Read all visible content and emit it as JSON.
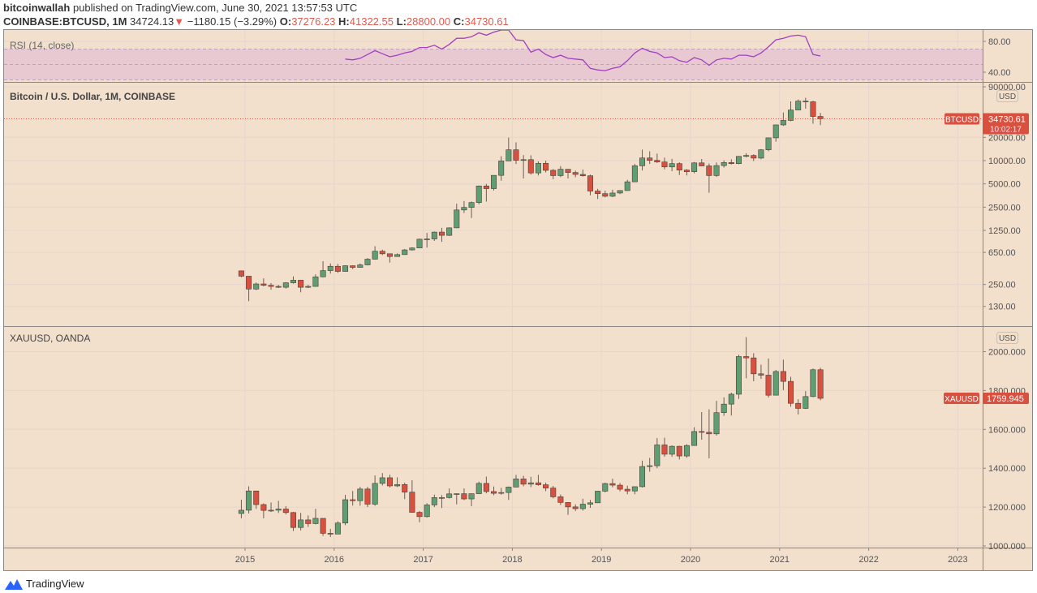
{
  "header": {
    "author": "bitcoinwallah",
    "published_text": "published on TradingView.com, June 30, 2021 13:57:53 UTC",
    "symbol": "COINBASE:BTCUSD, 1M",
    "last": "34724.13",
    "change": "−1180.15 (−3.29%)",
    "o_label": "O:",
    "o": "37276.23",
    "h_label": "H:",
    "h": "41322.55",
    "l_label": "L:",
    "l": "28800.00",
    "c_label": "C:",
    "c": "34730.61"
  },
  "colors": {
    "background": "#f2dfcc",
    "up": "#5f9e73",
    "down": "#d9503f",
    "rsi_line": "#a040c0",
    "rsi_band": "#e6c6d2"
  },
  "rsi_pane": {
    "title": "RSI (14, close)",
    "ticks": [
      "80.00",
      "40.00"
    ],
    "band": [
      30,
      70
    ],
    "start_month": "2016-02",
    "values": [
      57,
      56,
      58,
      63,
      68,
      64,
      60,
      62,
      65,
      67,
      72,
      72,
      75,
      70,
      76,
      84,
      84,
      86,
      91,
      88,
      92,
      96,
      97,
      82,
      81,
      66,
      70,
      63,
      59,
      62,
      58,
      57,
      56,
      45,
      43,
      42,
      45,
      47,
      55,
      65,
      71,
      67,
      65,
      59,
      60,
      55,
      53,
      59,
      56,
      49,
      56,
      58,
      57,
      62,
      62,
      60,
      65,
      73,
      82,
      84,
      87,
      88,
      86,
      63,
      61
    ]
  },
  "btc_pane": {
    "title": "Bitcoin / U.S. Dollar, 1M, COINBASE",
    "currency": "USD",
    "scale": "log",
    "ticks": [
      "90000.00",
      "20000.00",
      "10000.00",
      "5000.00",
      "2500.00",
      "1250.00",
      "650.00",
      "250.00",
      "130.00"
    ],
    "price_label": {
      "symbol": "BTCUSD",
      "price": "34730.61",
      "countdown": "10:02:17"
    },
    "start_month": "2014-12",
    "ohlc": [
      [
        375,
        380,
        310,
        320
      ],
      [
        320,
        320,
        152,
        218
      ],
      [
        218,
        265,
        212,
        254
      ],
      [
        254,
        300,
        236,
        244
      ],
      [
        244,
        261,
        214,
        236
      ],
      [
        236,
        247,
        225,
        230
      ],
      [
        230,
        268,
        221,
        263
      ],
      [
        263,
        318,
        256,
        284
      ],
      [
        284,
        285,
        198,
        230
      ],
      [
        230,
        247,
        225,
        236
      ],
      [
        236,
        338,
        236,
        314
      ],
      [
        314,
        500,
        310,
        378
      ],
      [
        378,
        468,
        346,
        430
      ],
      [
        430,
        462,
        353,
        369
      ],
      [
        369,
        443,
        367,
        437
      ],
      [
        437,
        439,
        394,
        416
      ],
      [
        416,
        467,
        412,
        448
      ],
      [
        448,
        550,
        441,
        531
      ],
      [
        531,
        781,
        526,
        673
      ],
      [
        673,
        705,
        600,
        624
      ],
      [
        624,
        624,
        480,
        575
      ],
      [
        575,
        630,
        570,
        609
      ],
      [
        609,
        720,
        605,
        700
      ],
      [
        700,
        755,
        685,
        742
      ],
      [
        742,
        979,
        740,
        963
      ],
      [
        963,
        1160,
        750,
        970
      ],
      [
        970,
        1210,
        915,
        1190
      ],
      [
        1190,
        1350,
        890,
        1080
      ],
      [
        1080,
        1370,
        1060,
        1350
      ],
      [
        1350,
        2770,
        1340,
        2300
      ],
      [
        2300,
        3000,
        2100,
        2480
      ],
      [
        2480,
        2960,
        1810,
        2870
      ],
      [
        2870,
        4760,
        2720,
        4700
      ],
      [
        4700,
        5000,
        2950,
        4340
      ],
      [
        4340,
        6470,
        4110,
        6450
      ],
      [
        6450,
        11400,
        5500,
        9900
      ],
      [
        9900,
        19890,
        9900,
        13800
      ],
      [
        13800,
        17250,
        9050,
        10100
      ],
      [
        10100,
        11790,
        5880,
        10300
      ],
      [
        10300,
        11700,
        6600,
        6930
      ],
      [
        6930,
        9770,
        6430,
        9240
      ],
      [
        9240,
        10000,
        7050,
        7490
      ],
      [
        7490,
        7780,
        5750,
        6400
      ],
      [
        6400,
        8500,
        6100,
        7730
      ],
      [
        7730,
        7760,
        5880,
        7020
      ],
      [
        7020,
        7420,
        6100,
        6630
      ],
      [
        6630,
        7680,
        6200,
        6370
      ],
      [
        6370,
        6590,
        3560,
        4040
      ],
      [
        4040,
        4310,
        3190,
        3740
      ],
      [
        3740,
        4090,
        3350,
        3460
      ],
      [
        3460,
        4200,
        3370,
        3810
      ],
      [
        3810,
        4150,
        3690,
        4100
      ],
      [
        4100,
        5640,
        4070,
        5320
      ],
      [
        5320,
        9080,
        5320,
        8570
      ],
      [
        8570,
        13880,
        7450,
        10820
      ],
      [
        10820,
        13200,
        9050,
        10080
      ],
      [
        10080,
        12330,
        9320,
        9600
      ],
      [
        9600,
        10950,
        7700,
        8290
      ],
      [
        8290,
        10540,
        7300,
        9150
      ],
      [
        9150,
        9510,
        6520,
        7540
      ],
      [
        7540,
        7750,
        6430,
        7190
      ],
      [
        7190,
        9580,
        6850,
        9350
      ],
      [
        9350,
        10500,
        8450,
        8540
      ],
      [
        8540,
        9200,
        3850,
        6410
      ],
      [
        6410,
        9460,
        6150,
        8630
      ],
      [
        8630,
        10070,
        8130,
        9450
      ],
      [
        9450,
        10390,
        8900,
        9140
      ],
      [
        9140,
        11450,
        8980,
        11350
      ],
      [
        11350,
        12470,
        10980,
        11660
      ],
      [
        11660,
        12090,
        9880,
        10780
      ],
      [
        10780,
        14100,
        10430,
        13800
      ],
      [
        13800,
        19900,
        13200,
        19700
      ],
      [
        19700,
        29300,
        17570,
        28990
      ],
      [
        28990,
        41950,
        28130,
        33110
      ],
      [
        33110,
        58350,
        32300,
        45160
      ],
      [
        45160,
        61790,
        44960,
        58800
      ],
      [
        58800,
        64900,
        47050,
        57720
      ],
      [
        57720,
        59500,
        30000,
        37280
      ],
      [
        37276.23,
        41322.55,
        28800,
        34730.61
      ]
    ]
  },
  "gold_pane": {
    "title": "XAUUSD, OANDA",
    "currency": "USD",
    "ticks": [
      "2000.000",
      "1800.000",
      "1600.000",
      "1400.000",
      "1200.000",
      "1000.000"
    ],
    "price_label": {
      "symbol": "XAUUSD",
      "price": "1759.945"
    },
    "start_month": "2014-12",
    "ohlc": [
      [
        1167,
        1238,
        1142,
        1184
      ],
      [
        1184,
        1307,
        1167,
        1283
      ],
      [
        1283,
        1284,
        1191,
        1213
      ],
      [
        1213,
        1219,
        1142,
        1183
      ],
      [
        1183,
        1224,
        1175,
        1184
      ],
      [
        1184,
        1232,
        1170,
        1190
      ],
      [
        1190,
        1205,
        1162,
        1172
      ],
      [
        1172,
        1175,
        1077,
        1095
      ],
      [
        1095,
        1170,
        1080,
        1134
      ],
      [
        1134,
        1157,
        1098,
        1115
      ],
      [
        1115,
        1191,
        1111,
        1142
      ],
      [
        1142,
        1142,
        1052,
        1065
      ],
      [
        1065,
        1088,
        1046,
        1061
      ],
      [
        1061,
        1127,
        1061,
        1118
      ],
      [
        1118,
        1263,
        1107,
        1238
      ],
      [
        1238,
        1283,
        1208,
        1233
      ],
      [
        1233,
        1304,
        1207,
        1293
      ],
      [
        1293,
        1304,
        1200,
        1215
      ],
      [
        1215,
        1363,
        1207,
        1322
      ],
      [
        1322,
        1375,
        1311,
        1351
      ],
      [
        1351,
        1367,
        1301,
        1309
      ],
      [
        1309,
        1353,
        1303,
        1316
      ],
      [
        1316,
        1326,
        1241,
        1277
      ],
      [
        1277,
        1338,
        1171,
        1173
      ],
      [
        1173,
        1180,
        1122,
        1151
      ],
      [
        1151,
        1220,
        1146,
        1211
      ],
      [
        1211,
        1264,
        1200,
        1249
      ],
      [
        1249,
        1262,
        1195,
        1249
      ],
      [
        1249,
        1296,
        1244,
        1268
      ],
      [
        1268,
        1270,
        1214,
        1269
      ],
      [
        1269,
        1296,
        1236,
        1242
      ],
      [
        1242,
        1270,
        1205,
        1269
      ],
      [
        1269,
        1331,
        1267,
        1322
      ],
      [
        1322,
        1357,
        1271,
        1280
      ],
      [
        1280,
        1306,
        1261,
        1271
      ],
      [
        1271,
        1299,
        1264,
        1275
      ],
      [
        1275,
        1306,
        1237,
        1303
      ],
      [
        1303,
        1366,
        1302,
        1345
      ],
      [
        1345,
        1361,
        1307,
        1318
      ],
      [
        1318,
        1356,
        1303,
        1325
      ],
      [
        1325,
        1366,
        1310,
        1315
      ],
      [
        1315,
        1326,
        1282,
        1298
      ],
      [
        1298,
        1309,
        1245,
        1253
      ],
      [
        1253,
        1265,
        1211,
        1224
      ],
      [
        1224,
        1224,
        1160,
        1201
      ],
      [
        1201,
        1214,
        1180,
        1192
      ],
      [
        1192,
        1243,
        1182,
        1215
      ],
      [
        1215,
        1237,
        1196,
        1222
      ],
      [
        1222,
        1284,
        1221,
        1282
      ],
      [
        1282,
        1326,
        1276,
        1321
      ],
      [
        1321,
        1346,
        1302,
        1313
      ],
      [
        1313,
        1324,
        1281,
        1292
      ],
      [
        1292,
        1310,
        1266,
        1283
      ],
      [
        1283,
        1306,
        1266,
        1305
      ],
      [
        1305,
        1439,
        1301,
        1409
      ],
      [
        1409,
        1453,
        1382,
        1413
      ],
      [
        1413,
        1555,
        1400,
        1520
      ],
      [
        1520,
        1557,
        1459,
        1472
      ],
      [
        1472,
        1518,
        1459,
        1513
      ],
      [
        1513,
        1516,
        1445,
        1463
      ],
      [
        1463,
        1524,
        1454,
        1517
      ],
      [
        1517,
        1611,
        1517,
        1589
      ],
      [
        1589,
        1689,
        1547,
        1585
      ],
      [
        1585,
        1703,
        1451,
        1577
      ],
      [
        1577,
        1747,
        1568,
        1686
      ],
      [
        1686,
        1765,
        1670,
        1730
      ],
      [
        1730,
        1789,
        1671,
        1781
      ],
      [
        1781,
        1984,
        1757,
        1975
      ],
      [
        1975,
        2075,
        1863,
        1968
      ],
      [
        1968,
        1992,
        1848,
        1886
      ],
      [
        1886,
        1933,
        1860,
        1879
      ],
      [
        1879,
        1965,
        1764,
        1776
      ],
      [
        1776,
        1906,
        1775,
        1898
      ],
      [
        1898,
        1959,
        1802,
        1847
      ],
      [
        1847,
        1871,
        1717,
        1734
      ],
      [
        1734,
        1755,
        1677,
        1708
      ],
      [
        1708,
        1797,
        1705,
        1769
      ],
      [
        1769,
        1913,
        1766,
        1907
      ],
      [
        1907,
        1917,
        1750,
        1759.945
      ]
    ]
  },
  "time_axis": {
    "labels": [
      "2015",
      "2016",
      "2017",
      "2018",
      "2019",
      "2020",
      "2021",
      "2022",
      "2023"
    ]
  },
  "footer": {
    "brand": "TradingView",
    "logo_icon": "tradingview-logo-icon"
  }
}
